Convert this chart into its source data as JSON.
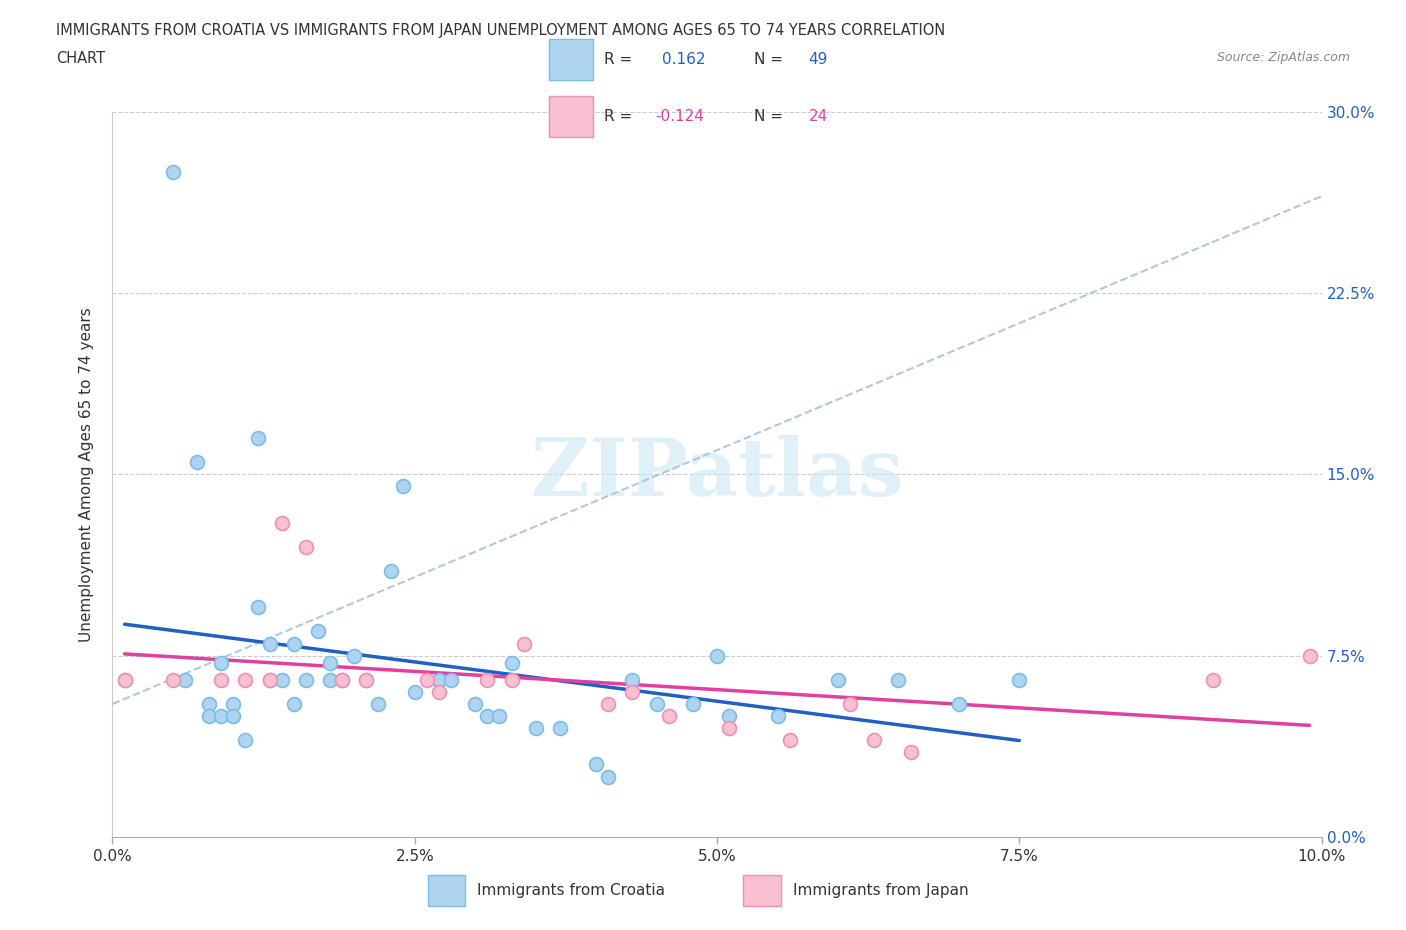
{
  "title_line1": "IMMIGRANTS FROM CROATIA VS IMMIGRANTS FROM JAPAN UNEMPLOYMENT AMONG AGES 65 TO 74 YEARS CORRELATION",
  "title_line2": "CHART",
  "source": "Source: ZipAtlas.com",
  "ylabel": "Unemployment Among Ages 65 to 74 years",
  "xlim": [
    0.0,
    0.1
  ],
  "ylim": [
    0.0,
    0.3
  ],
  "watermark": "ZIPatlas",
  "croatia_color_edge": "#7bbce8",
  "croatia_color_fill": "#aed4f0",
  "japan_color_edge": "#f090b0",
  "japan_color_fill": "#f8c0d0",
  "trendline_croatia_color": "#2060c0",
  "trendline_japan_color": "#e040a0",
  "R_croatia": 0.162,
  "N_croatia": 49,
  "R_japan": -0.124,
  "N_japan": 24,
  "croatia_x": [
    0.001,
    0.005,
    0.006,
    0.007,
    0.008,
    0.008,
    0.009,
    0.009,
    0.01,
    0.01,
    0.011,
    0.012,
    0.012,
    0.013,
    0.013,
    0.014,
    0.015,
    0.015,
    0.016,
    0.017,
    0.018,
    0.018,
    0.019,
    0.02,
    0.021,
    0.022,
    0.023,
    0.024,
    0.025,
    0.027,
    0.028,
    0.03,
    0.031,
    0.032,
    0.033,
    0.035,
    0.037,
    0.04,
    0.041,
    0.043,
    0.045,
    0.048,
    0.05,
    0.051,
    0.055,
    0.06,
    0.065,
    0.07,
    0.075
  ],
  "croatia_y": [
    0.065,
    0.275,
    0.065,
    0.155,
    0.055,
    0.05,
    0.072,
    0.05,
    0.055,
    0.05,
    0.04,
    0.165,
    0.095,
    0.08,
    0.065,
    0.065,
    0.055,
    0.08,
    0.065,
    0.085,
    0.072,
    0.065,
    0.065,
    0.075,
    0.065,
    0.055,
    0.11,
    0.145,
    0.06,
    0.065,
    0.065,
    0.055,
    0.05,
    0.05,
    0.072,
    0.045,
    0.045,
    0.03,
    0.025,
    0.065,
    0.055,
    0.055,
    0.075,
    0.05,
    0.05,
    0.065,
    0.065,
    0.055,
    0.065
  ],
  "japan_x": [
    0.001,
    0.005,
    0.009,
    0.011,
    0.013,
    0.014,
    0.016,
    0.019,
    0.021,
    0.026,
    0.027,
    0.031,
    0.033,
    0.034,
    0.041,
    0.043,
    0.046,
    0.051,
    0.056,
    0.061,
    0.063,
    0.066,
    0.091,
    0.099
  ],
  "japan_y": [
    0.065,
    0.065,
    0.065,
    0.065,
    0.065,
    0.13,
    0.12,
    0.065,
    0.065,
    0.065,
    0.06,
    0.065,
    0.065,
    0.08,
    0.055,
    0.06,
    0.05,
    0.045,
    0.04,
    0.055,
    0.04,
    0.035,
    0.065,
    0.075
  ],
  "ylabel_tick_vals": [
    0.0,
    0.075,
    0.15,
    0.225,
    0.3
  ],
  "ylabel_tick_labels": [
    "0.0%",
    "7.5%",
    "15.0%",
    "22.5%",
    "30.0%"
  ],
  "xlabel_tick_vals": [
    0.0,
    0.025,
    0.05,
    0.075,
    0.1
  ],
  "xlabel_tick_labels": [
    "0.0%",
    "2.5%",
    "5.0%",
    "7.5%",
    "10.0%"
  ]
}
